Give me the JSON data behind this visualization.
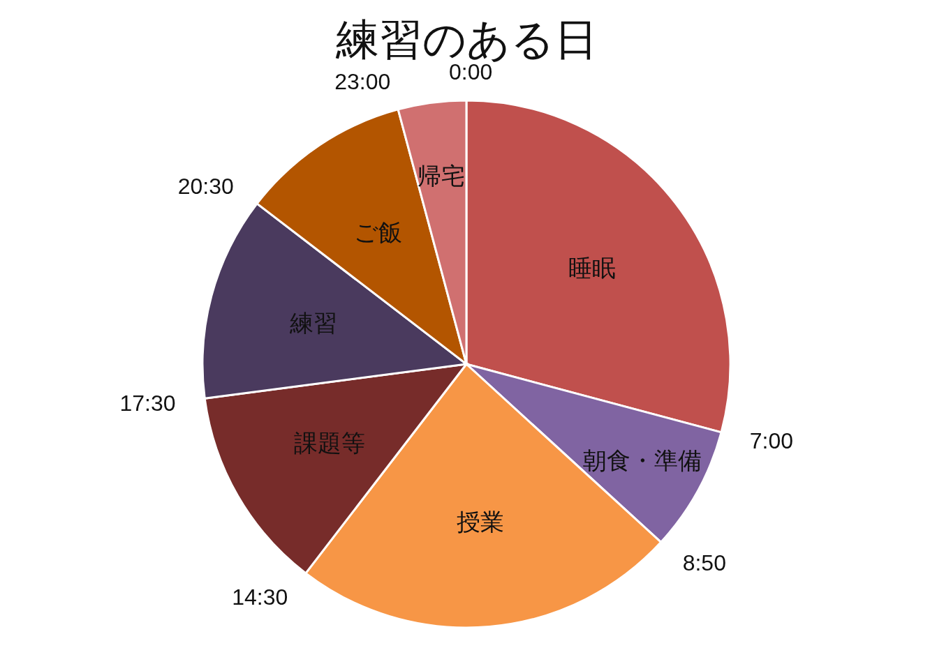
{
  "chart_data": {
    "type": "pie",
    "title": "練習のある日",
    "categories": [
      "睡眠",
      "朝食・準備",
      "授業",
      "課題等",
      "練習",
      "ご飯",
      "帰宅"
    ],
    "values": [
      29.1667,
      7.6389,
      23.6111,
      12.5,
      12.5,
      10.4167,
      4.1667
    ],
    "colors": [
      "#c0504d",
      "#8064a2",
      "#f79646",
      "#772c2a",
      "#4a3a5e",
      "#b35500",
      "#d07070"
    ],
    "annotations": [
      "0:00",
      "7:00",
      "8:50",
      "14:30",
      "17:30",
      "20:30",
      "23:00"
    ]
  }
}
